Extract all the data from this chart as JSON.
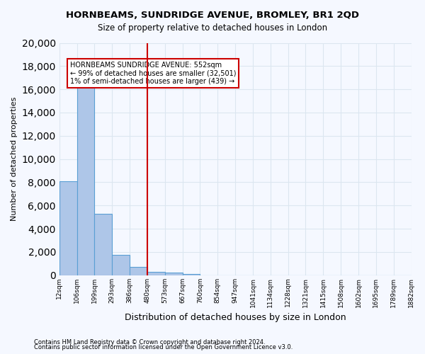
{
  "title": "HORNBEAMS, SUNDRIDGE AVENUE, BROMLEY, BR1 2QD",
  "subtitle": "Size of property relative to detached houses in London",
  "xlabel": "Distribution of detached houses by size in London",
  "ylabel": "Number of detached properties",
  "footnote1": "Contains HM Land Registry data © Crown copyright and database right 2024.",
  "footnote2": "Contains public sector information licensed under the Open Government Licence v3.0.",
  "annotation_line1": "HORNBEAMS SUNDRIDGE AVENUE: 552sqm",
  "annotation_line2": "← 99% of detached houses are smaller (32,501)",
  "annotation_line3": "1% of semi-detached houses are larger (439) →",
  "bar_color": "#aec6e8",
  "bar_edge_color": "#5a9fd4",
  "grid_color": "#dce6f0",
  "vline_color": "#cc0000",
  "background_color": "#f5f8ff",
  "bins": [
    "12sqm",
    "106sqm",
    "199sqm",
    "293sqm",
    "386sqm",
    "480sqm",
    "573sqm",
    "667sqm",
    "760sqm",
    "854sqm",
    "947sqm",
    "1041sqm",
    "1134sqm",
    "1228sqm",
    "1321sqm",
    "1415sqm",
    "1508sqm",
    "1602sqm",
    "1695sqm",
    "1789sqm",
    "1882sqm"
  ],
  "values": [
    8100,
    16600,
    5300,
    1750,
    700,
    280,
    200,
    100,
    0,
    0,
    0,
    0,
    0,
    0,
    0,
    0,
    0,
    0,
    0,
    0
  ],
  "vline_x": 5,
  "ylim": [
    0,
    20000
  ],
  "yticks": [
    0,
    2000,
    4000,
    6000,
    8000,
    10000,
    12000,
    14000,
    16000,
    18000,
    20000
  ]
}
